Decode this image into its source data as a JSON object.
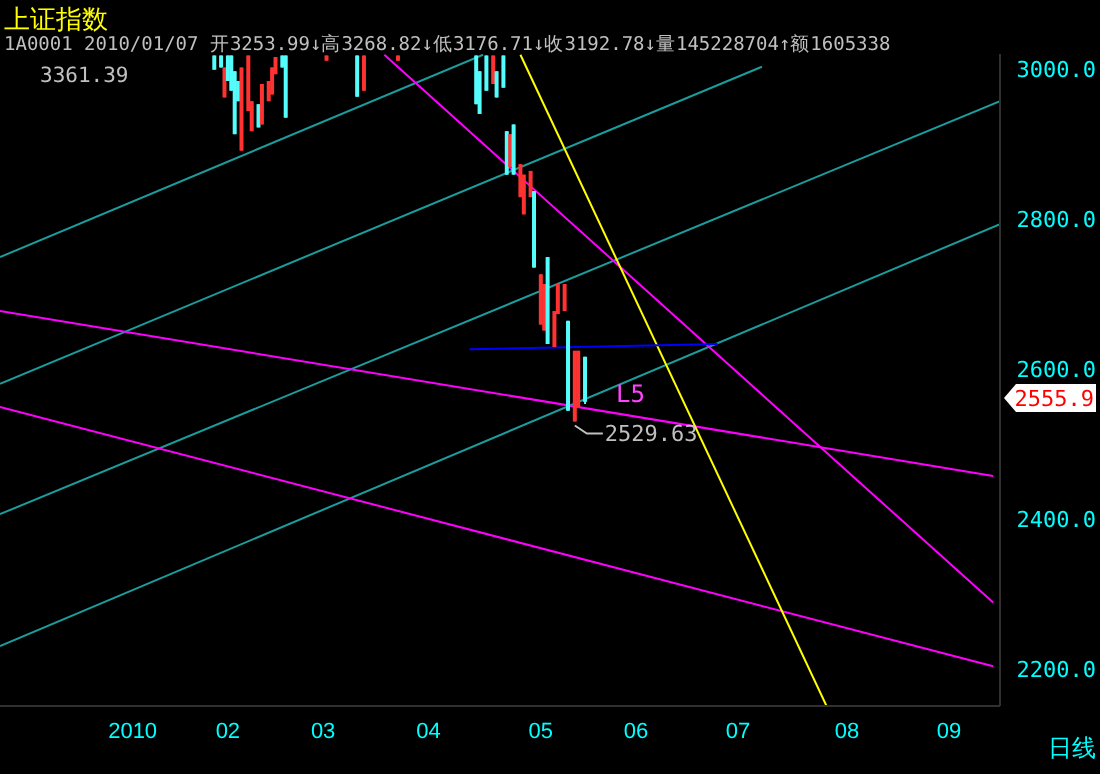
{
  "chart_data": {
    "type": "candlestick",
    "title": "上证指数",
    "subtitle": "1A0001 2010/01/07 开3253.99↓高3268.82↓低3176.71↓收3192.78↓量145228704↑额1605338",
    "x": [
      "2010-01-28",
      "2010-01-30",
      "2010-01-31",
      "2010-02-01",
      "2010-02-02",
      "2010-02-03",
      "2010-02-04",
      "2010-02-05",
      "2010-02-07",
      "2010-02-08",
      "2010-02-10",
      "2010-02-11",
      "2010-02-13",
      "2010-02-14",
      "2010-02-15",
      "2010-02-17",
      "2010-02-18",
      "2010-03-02",
      "2010-03-11",
      "2010-03-13",
      "2010-03-23",
      "2010-04-15",
      "2010-04-16",
      "2010-04-18",
      "2010-04-20",
      "2010-04-21",
      "2010-04-23",
      "2010-04-24",
      "2010-04-25",
      "2010-04-26",
      "2010-04-28",
      "2010-04-29",
      "2010-05-01",
      "2010-05-02",
      "2010-05-04",
      "2010-05-05",
      "2010-05-06",
      "2010-05-08",
      "2010-05-09",
      "2010-05-11",
      "2010-05-12",
      "2010-05-14",
      "2010-05-15",
      "2010-05-17"
    ],
    "ohlc": [
      [
        3018,
        3018,
        2999,
        2999
      ],
      [
        3018,
        3018,
        3002,
        3002
      ],
      [
        2962,
        3002,
        2962,
        3002
      ],
      [
        3018,
        3018,
        2984,
        2984
      ],
      [
        3018,
        3018,
        2971,
        2971
      ],
      [
        2997,
        2997,
        2913,
        2913
      ],
      [
        2984,
        2984,
        2957,
        2957
      ],
      [
        2891,
        3002,
        2891,
        3002
      ],
      [
        2944,
        3018,
        2944,
        3018
      ],
      [
        2917,
        2957,
        2917,
        2957
      ],
      [
        2953,
        2953,
        2922,
        2922
      ],
      [
        2926,
        2980,
        2926,
        2980
      ],
      [
        2957,
        2984,
        2957,
        2984
      ],
      [
        2966,
        3002,
        2966,
        3002
      ],
      [
        2993,
        3016,
        2993,
        3016
      ],
      [
        3018,
        3018,
        3002,
        3002
      ],
      [
        3018,
        3018,
        2935,
        2935
      ],
      [
        3011,
        3018,
        3011,
        3018
      ],
      [
        3018,
        3018,
        2963,
        2963
      ],
      [
        2971,
        3018,
        2971,
        3018
      ],
      [
        3011,
        3018,
        3011,
        3018
      ],
      [
        3018,
        3018,
        2953,
        2953
      ],
      [
        2997,
        2997,
        2940,
        2940
      ],
      [
        3018,
        3018,
        2971,
        2971
      ],
      [
        2980,
        3018,
        2980,
        3018
      ],
      [
        2997,
        2997,
        2962,
        2962
      ],
      [
        3018,
        3018,
        2975,
        2975
      ],
      [
        2917,
        2917,
        2859,
        2859
      ],
      [
        2869,
        2913,
        2869,
        2913
      ],
      [
        2926,
        2926,
        2859,
        2859
      ],
      [
        2829,
        2873,
        2829,
        2873
      ],
      [
        2806,
        2859,
        2806,
        2859
      ],
      [
        2829,
        2864,
        2829,
        2864
      ],
      [
        2837,
        2837,
        2735,
        2735
      ],
      [
        2659,
        2726,
        2659,
        2726
      ],
      [
        2651,
        2713,
        2651,
        2713
      ],
      [
        2749,
        2749,
        2633,
        2633
      ],
      [
        2629,
        2677,
        2629,
        2677
      ],
      [
        2673,
        2713,
        2673,
        2713
      ],
      [
        2677,
        2713,
        2677,
        2713
      ],
      [
        2664,
        2664,
        2544,
        2544
      ],
      [
        2529.63,
        2624,
        2529.63,
        2624
      ],
      [
        2549,
        2624,
        2549,
        2624
      ],
      [
        2616,
        2616,
        2553,
        2555.9
      ]
    ],
    "colors": [
      "#54fcfc",
      "#54fcfc",
      "#ff3232",
      "#54fcfc",
      "#54fcfc",
      "#54fcfc",
      "#54fcfc",
      "#ff3232",
      "#ff3232",
      "#ff3232",
      "#54fcfc",
      "#ff3232",
      "#ff3232",
      "#ff3232",
      "#ff3232",
      "#54fcfc",
      "#54fcfc",
      "#ff3232",
      "#54fcfc",
      "#ff3232",
      "#ff3232",
      "#54fcfc",
      "#54fcfc",
      "#54fcfc",
      "#ff3232",
      "#54fcfc",
      "#54fcfc",
      "#54fcfc",
      "#ff3232",
      "#54fcfc",
      "#ff3232",
      "#ff3232",
      "#ff3232",
      "#54fcfc",
      "#ff3232",
      "#ff3232",
      "#54fcfc",
      "#ff3232",
      "#ff3232",
      "#ff3232",
      "#54fcfc",
      "#ff3232",
      "#ff3232",
      "#54fcfc"
    ],
    "series": [
      {
        "type": "line",
        "color": "#1c9c9c",
        "x": [
          "2009-11-26",
          "2010-04-17"
        ],
        "values": [
          2749,
          3019
        ]
      },
      {
        "type": "line",
        "color": "#1c9c9c",
        "x": [
          "2009-11-26",
          "2010-07-08"
        ],
        "values": [
          2580,
          3003
        ]
      },
      {
        "type": "line",
        "color": "#1c9c9c",
        "x": [
          "2009-11-26",
          "2010-09-16"
        ],
        "values": [
          2406,
          2957
        ]
      },
      {
        "type": "line",
        "color": "#1c9c9c",
        "x": [
          "2009-11-26",
          "2010-09-16"
        ],
        "values": [
          2230,
          2793
        ]
      },
      {
        "type": "line",
        "color": "#ff00ff",
        "x": [
          "2010-03-19",
          "2010-09-14"
        ],
        "values": [
          3019,
          2288
        ]
      },
      {
        "type": "line",
        "color": "#ff00ff",
        "x": [
          "2009-11-26",
          "2010-09-14"
        ],
        "values": [
          2677,
          2457
        ]
      },
      {
        "type": "line",
        "color": "#ff00ff",
        "x": [
          "2009-11-26",
          "2010-09-14"
        ],
        "values": [
          2549,
          2203
        ]
      },
      {
        "type": "line",
        "color": "#ffff00",
        "x": [
          "2010-04-28",
          "2010-07-27"
        ],
        "values": [
          3019,
          2150
        ]
      },
      {
        "type": "line",
        "color": "#0000ff",
        "x": [
          "2010-04-13",
          "2010-06-25"
        ],
        "values": [
          2626,
          2633
        ]
      }
    ],
    "xlim": [
      "2009-11-26",
      "2010-09-16"
    ],
    "xticks": [
      {
        "value": "2010-01-04",
        "label": "2010"
      },
      {
        "value": "2010-02-01",
        "label": "02"
      },
      {
        "value": "2010-03-01",
        "label": "03"
      },
      {
        "value": "2010-04-01",
        "label": "04"
      },
      {
        "value": "2010-05-04",
        "label": "05"
      },
      {
        "value": "2010-06-01",
        "label": "06"
      },
      {
        "value": "2010-07-01",
        "label": "07"
      },
      {
        "value": "2010-08-02",
        "label": "08"
      },
      {
        "value": "2010-09-01",
        "label": "09"
      }
    ],
    "ylim": [
      2150,
      3020
    ],
    "yticks": [
      {
        "value": 2200,
        "label": "2200.0"
      },
      {
        "value": 2400,
        "label": "2400.0"
      },
      {
        "value": 2600,
        "label": "2600.0"
      },
      {
        "value": 2800,
        "label": "2800.0"
      },
      {
        "value": 3000,
        "label": "3000.0"
      }
    ],
    "annotations": [
      "3361.39",
      {
        "text": "2529.63",
        "x": "2010-05-14",
        "y": 2529.63
      },
      "L5",
      "2555.9",
      "日线"
    ]
  }
}
